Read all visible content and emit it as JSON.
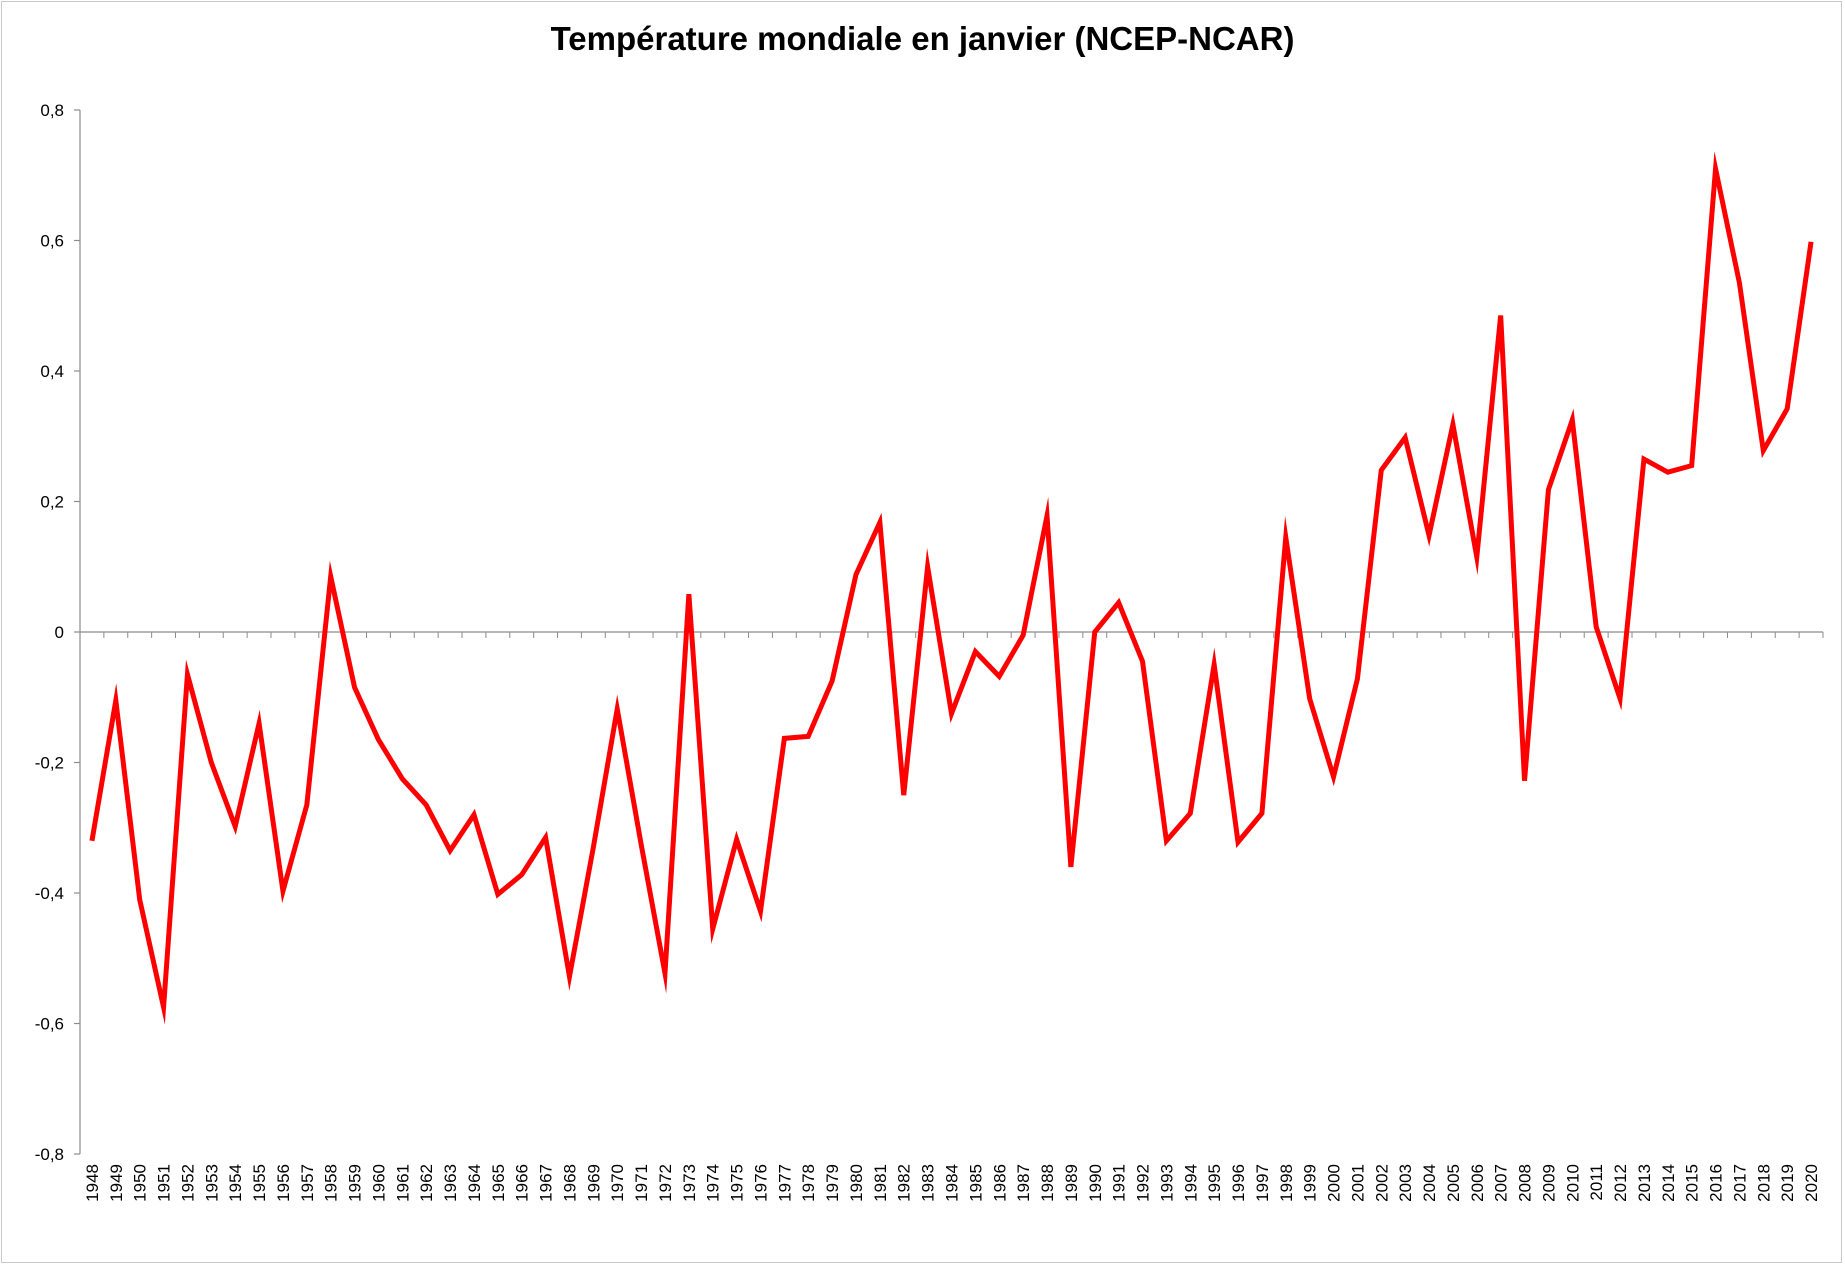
{
  "chart_data": {
    "type": "line",
    "title": "Température mondiale en janvier (NCEP-NCAR)",
    "xlabel": "",
    "ylabel": "",
    "ylim": [
      -0.8,
      0.8
    ],
    "yticks": [
      0.8,
      0.6,
      0.4,
      0.2,
      0,
      -0.2,
      -0.4,
      -0.6,
      -0.8
    ],
    "ytick_labels": [
      "0,8",
      "0,6",
      "0,4",
      "0,2",
      "0",
      "-0,2",
      "-0,4",
      "-0,6",
      "-0,8"
    ],
    "grid": false,
    "legend": "none",
    "line_color": "#ff0000",
    "categories": [
      "1948",
      "1949",
      "1950",
      "1951",
      "1952",
      "1953",
      "1954",
      "1955",
      "1956",
      "1957",
      "1958",
      "1959",
      "1960",
      "1961",
      "1962",
      "1963",
      "1964",
      "1965",
      "1966",
      "1967",
      "1968",
      "1969",
      "1970",
      "1971",
      "1972",
      "1973",
      "1974",
      "1975",
      "1976",
      "1977",
      "1978",
      "1979",
      "1980",
      "1981",
      "1982",
      "1983",
      "1984",
      "1985",
      "1986",
      "1987",
      "1988",
      "1989",
      "1990",
      "1991",
      "1992",
      "1993",
      "1994",
      "1995",
      "1996",
      "1997",
      "1998",
      "1999",
      "2000",
      "2001",
      "2002",
      "2003",
      "2004",
      "2005",
      "2006",
      "2007",
      "2008",
      "2009",
      "2010",
      "2011",
      "2012",
      "2013",
      "2014",
      "2015",
      "2016",
      "2017",
      "2018",
      "2019",
      "2020"
    ],
    "series": [
      {
        "values": [
          -0.32,
          -0.105,
          -0.41,
          -0.575,
          -0.065,
          -0.2,
          -0.298,
          -0.14,
          -0.397,
          -0.265,
          0.085,
          -0.085,
          -0.165,
          -0.225,
          -0.265,
          -0.335,
          -0.28,
          -0.402,
          -0.372,
          -0.315,
          -0.528,
          -0.33,
          -0.118,
          -0.325,
          -0.523,
          0.058,
          -0.455,
          -0.318,
          -0.428,
          -0.163,
          -0.16,
          -0.075,
          0.088,
          0.168,
          -0.25,
          0.1,
          -0.125,
          -0.03,
          -0.068,
          -0.005,
          0.178,
          -0.36,
          0.0,
          0.045,
          -0.045,
          -0.32,
          -0.278,
          -0.05,
          -0.322,
          -0.278,
          0.145,
          -0.102,
          -0.222,
          -0.072,
          0.248,
          0.298,
          0.148,
          0.318,
          0.115,
          0.485,
          -0.228,
          0.218,
          0.325,
          0.008,
          -0.102,
          0.265,
          0.245,
          0.255,
          0.71,
          0.535,
          0.278,
          0.342,
          0.598
        ]
      }
    ]
  }
}
